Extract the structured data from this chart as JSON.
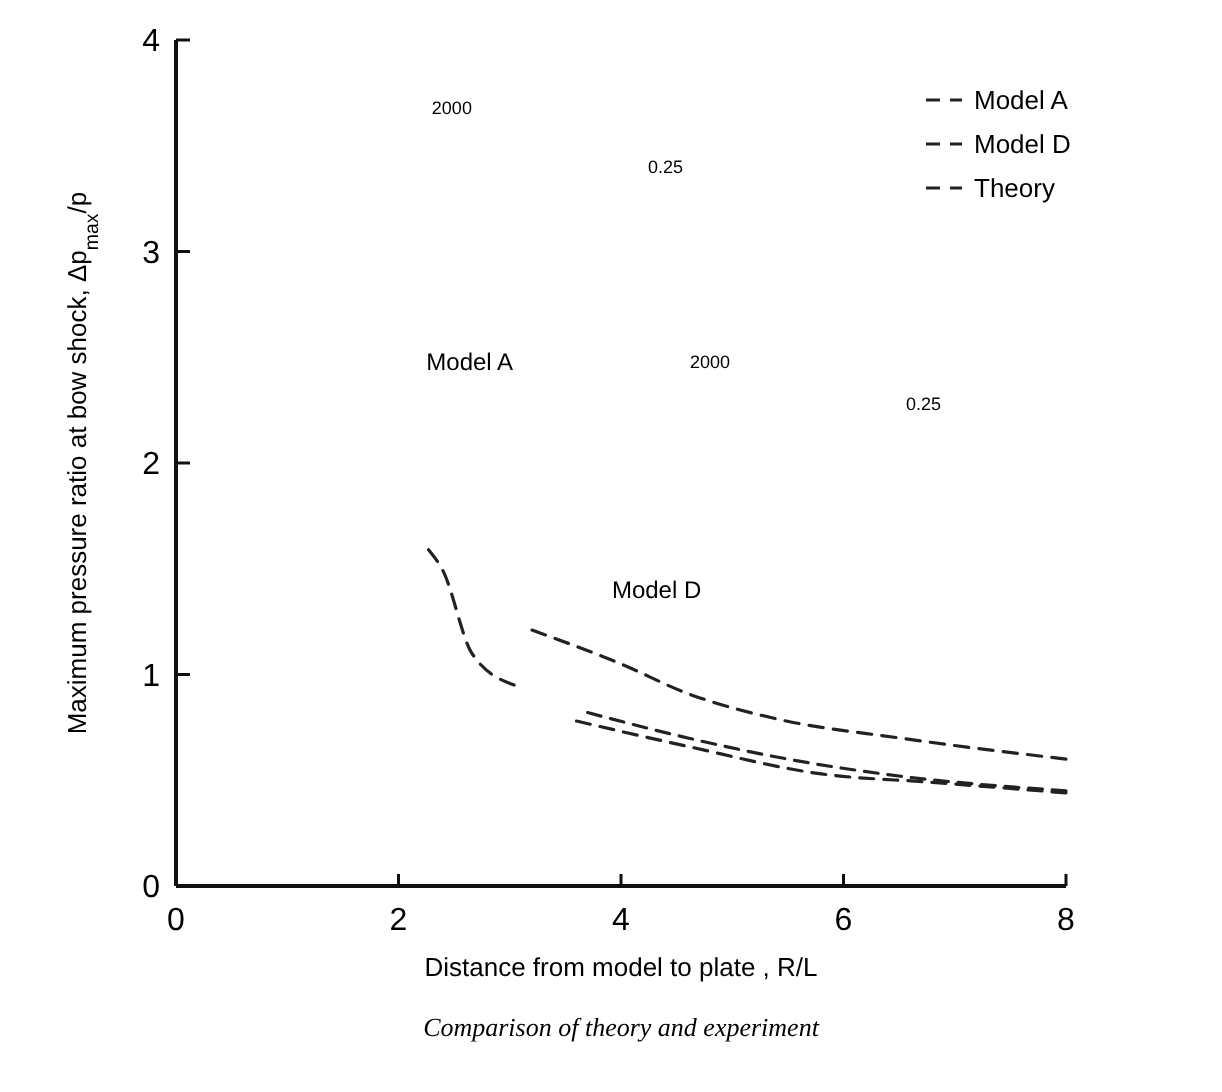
{
  "chart_data": {
    "type": "line",
    "title": "Comparison of theory and experiment",
    "xlabel": "Distance from model to plate , R/L",
    "ylabel": "Maximum pressure ratio at bow shock, Δp$_{max}$/p",
    "xlim": [
      0,
      8
    ],
    "ylim": [
      0,
      4
    ],
    "xticks": [
      0,
      2,
      4,
      6,
      8
    ],
    "yticks": [
      0,
      1,
      2,
      3,
      4
    ],
    "grid": false,
    "legend": "top right",
    "line_style": "dashed",
    "marker": "none",
    "series": [
      {
        "name": "Model A",
        "color": "#222222",
        "x": [
          3.2,
          4.0,
          4.6,
          5.4,
          6.5,
          8.0
        ],
        "values": [
          1.21,
          1.05,
          0.91,
          0.79,
          0.7,
          0.6
        ]
      },
      {
        "name": "Model D",
        "color": "#222222",
        "x": [
          3.7,
          4.6,
          5.5,
          6.5,
          8.0
        ],
        "values": [
          0.82,
          0.7,
          0.6,
          0.52,
          0.45
        ]
      },
      {
        "name": "Theory",
        "color": "#222222",
        "x": [
          3.6,
          4.6,
          5.8,
          6.8,
          8.0
        ],
        "values": [
          0.78,
          0.66,
          0.53,
          0.49,
          0.44
        ]
      },
      {
        "color": "#222222",
        "x": [
          2.27,
          2.4,
          2.66,
          3.04
        ],
        "values": [
          1.59,
          1.49,
          1.1,
          0.95
        ]
      }
    ],
    "annotations": [
      "Model A",
      "Model D",
      "2000",
      "0.25",
      "2000",
      "0.25"
    ]
  }
}
